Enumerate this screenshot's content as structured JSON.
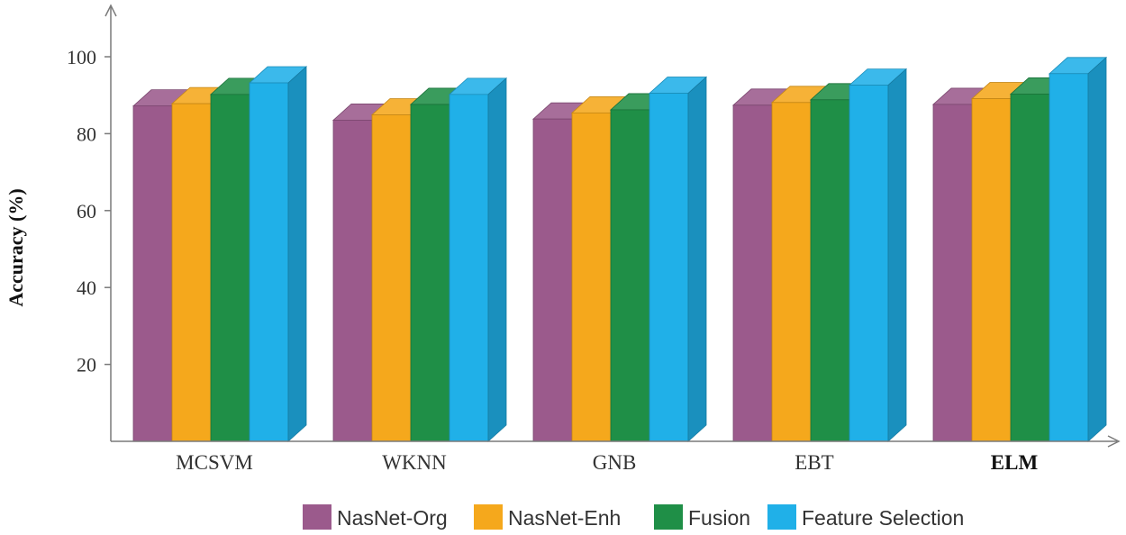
{
  "chart_data": {
    "type": "bar",
    "title": "",
    "xlabel": "",
    "ylabel": "Accuracy (%)",
    "ylim": [
      0,
      110
    ],
    "yticks": [
      20,
      40,
      60,
      80,
      100
    ],
    "grid": false,
    "legend_position": "bottom",
    "categories": [
      "MCSVM",
      "WKNN",
      "GNB",
      "EBT",
      "ELM"
    ],
    "bold_categories": [
      "ELM"
    ],
    "series": [
      {
        "name": "NasNet-Org",
        "color": "#9b5a8c",
        "values": [
          87.2,
          83.5,
          83.8,
          87.4,
          87.6
        ]
      },
      {
        "name": "NasNet-Enh",
        "color": "#f5a81c",
        "values": [
          87.8,
          84.9,
          85.4,
          88.1,
          89.1
        ]
      },
      {
        "name": "Fusion",
        "color": "#1f8f47",
        "values": [
          90.2,
          87.6,
          86.2,
          88.8,
          90.3
        ]
      },
      {
        "name": "Feature Selection",
        "color": "#20b0e8",
        "values": [
          93.2,
          90.2,
          90.5,
          92.6,
          95.6
        ]
      }
    ]
  }
}
